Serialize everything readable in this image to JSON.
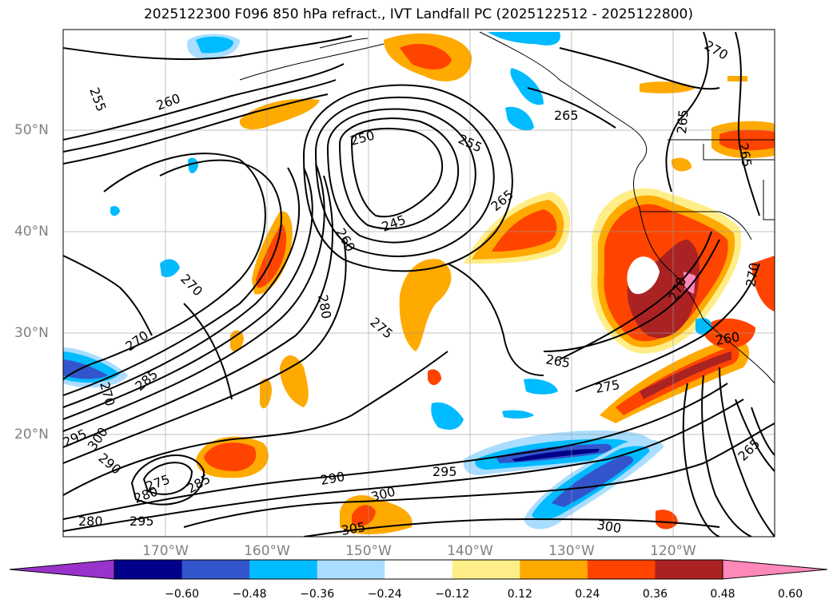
{
  "title": "2025122300 F096 850 hPa refract., IVT Landfall PC (2025122512 - 2025122800)",
  "map": {
    "lat_labels": [
      "50°N",
      "40°N",
      "30°N",
      "20°N"
    ],
    "lon_labels": [
      "170°W",
      "160°W",
      "150°W",
      "140°W",
      "130°W",
      "120°W"
    ],
    "contour_labels": [
      "255",
      "260",
      "250",
      "255",
      "265",
      "260",
      "245",
      "270",
      "280",
      "275",
      "270",
      "285",
      "270",
      "295",
      "300",
      "290",
      "275",
      "280",
      "285",
      "290",
      "295",
      "300",
      "305",
      "295",
      "280",
      "265",
      "275",
      "300",
      "270",
      "260",
      "265",
      "265",
      "270",
      "265",
      "270",
      "265"
    ]
  },
  "colorbar": {
    "colors": [
      "#9933cc",
      "#000088",
      "#3355cc",
      "#00bbff",
      "#aaddff",
      "#ffffff",
      "#ffee88",
      "#ffaa00",
      "#ff4400",
      "#aa2222",
      "#ff88bb"
    ],
    "ticks": [
      "−0.60",
      "−0.48",
      "−0.36",
      "−0.24",
      "−0.12",
      "0.12",
      "0.24",
      "0.36",
      "0.48",
      "0.60"
    ]
  }
}
